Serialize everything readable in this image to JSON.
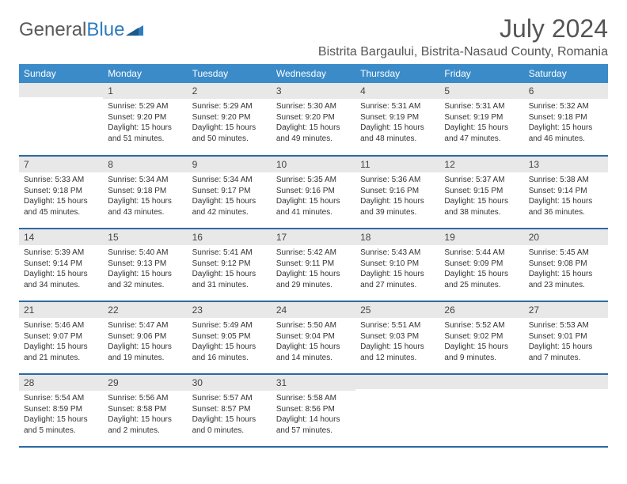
{
  "logo": {
    "text1": "General",
    "text2": "Blue"
  },
  "header": {
    "month_title": "July 2024",
    "location": "Bistrita Bargaului, Bistrita-Nasaud County, Romania"
  },
  "colors": {
    "header_bg": "#3b8bc9",
    "header_text": "#ffffff",
    "daynum_bg": "#e8e8e8",
    "row_border": "#2d6aa3",
    "logo_gray": "#5a5a5a",
    "logo_blue": "#2d7cc0"
  },
  "weekdays": [
    "Sunday",
    "Monday",
    "Tuesday",
    "Wednesday",
    "Thursday",
    "Friday",
    "Saturday"
  ],
  "weeks": [
    [
      {
        "blank": true
      },
      {
        "n": "1",
        "sr": "5:29 AM",
        "ss": "9:20 PM",
        "dl": "15 hours and 51 minutes."
      },
      {
        "n": "2",
        "sr": "5:29 AM",
        "ss": "9:20 PM",
        "dl": "15 hours and 50 minutes."
      },
      {
        "n": "3",
        "sr": "5:30 AM",
        "ss": "9:20 PM",
        "dl": "15 hours and 49 minutes."
      },
      {
        "n": "4",
        "sr": "5:31 AM",
        "ss": "9:19 PM",
        "dl": "15 hours and 48 minutes."
      },
      {
        "n": "5",
        "sr": "5:31 AM",
        "ss": "9:19 PM",
        "dl": "15 hours and 47 minutes."
      },
      {
        "n": "6",
        "sr": "5:32 AM",
        "ss": "9:18 PM",
        "dl": "15 hours and 46 minutes."
      }
    ],
    [
      {
        "n": "7",
        "sr": "5:33 AM",
        "ss": "9:18 PM",
        "dl": "15 hours and 45 minutes."
      },
      {
        "n": "8",
        "sr": "5:34 AM",
        "ss": "9:18 PM",
        "dl": "15 hours and 43 minutes."
      },
      {
        "n": "9",
        "sr": "5:34 AM",
        "ss": "9:17 PM",
        "dl": "15 hours and 42 minutes."
      },
      {
        "n": "10",
        "sr": "5:35 AM",
        "ss": "9:16 PM",
        "dl": "15 hours and 41 minutes."
      },
      {
        "n": "11",
        "sr": "5:36 AM",
        "ss": "9:16 PM",
        "dl": "15 hours and 39 minutes."
      },
      {
        "n": "12",
        "sr": "5:37 AM",
        "ss": "9:15 PM",
        "dl": "15 hours and 38 minutes."
      },
      {
        "n": "13",
        "sr": "5:38 AM",
        "ss": "9:14 PM",
        "dl": "15 hours and 36 minutes."
      }
    ],
    [
      {
        "n": "14",
        "sr": "5:39 AM",
        "ss": "9:14 PM",
        "dl": "15 hours and 34 minutes."
      },
      {
        "n": "15",
        "sr": "5:40 AM",
        "ss": "9:13 PM",
        "dl": "15 hours and 32 minutes."
      },
      {
        "n": "16",
        "sr": "5:41 AM",
        "ss": "9:12 PM",
        "dl": "15 hours and 31 minutes."
      },
      {
        "n": "17",
        "sr": "5:42 AM",
        "ss": "9:11 PM",
        "dl": "15 hours and 29 minutes."
      },
      {
        "n": "18",
        "sr": "5:43 AM",
        "ss": "9:10 PM",
        "dl": "15 hours and 27 minutes."
      },
      {
        "n": "19",
        "sr": "5:44 AM",
        "ss": "9:09 PM",
        "dl": "15 hours and 25 minutes."
      },
      {
        "n": "20",
        "sr": "5:45 AM",
        "ss": "9:08 PM",
        "dl": "15 hours and 23 minutes."
      }
    ],
    [
      {
        "n": "21",
        "sr": "5:46 AM",
        "ss": "9:07 PM",
        "dl": "15 hours and 21 minutes."
      },
      {
        "n": "22",
        "sr": "5:47 AM",
        "ss": "9:06 PM",
        "dl": "15 hours and 19 minutes."
      },
      {
        "n": "23",
        "sr": "5:49 AM",
        "ss": "9:05 PM",
        "dl": "15 hours and 16 minutes."
      },
      {
        "n": "24",
        "sr": "5:50 AM",
        "ss": "9:04 PM",
        "dl": "15 hours and 14 minutes."
      },
      {
        "n": "25",
        "sr": "5:51 AM",
        "ss": "9:03 PM",
        "dl": "15 hours and 12 minutes."
      },
      {
        "n": "26",
        "sr": "5:52 AM",
        "ss": "9:02 PM",
        "dl": "15 hours and 9 minutes."
      },
      {
        "n": "27",
        "sr": "5:53 AM",
        "ss": "9:01 PM",
        "dl": "15 hours and 7 minutes."
      }
    ],
    [
      {
        "n": "28",
        "sr": "5:54 AM",
        "ss": "8:59 PM",
        "dl": "15 hours and 5 minutes."
      },
      {
        "n": "29",
        "sr": "5:56 AM",
        "ss": "8:58 PM",
        "dl": "15 hours and 2 minutes."
      },
      {
        "n": "30",
        "sr": "5:57 AM",
        "ss": "8:57 PM",
        "dl": "15 hours and 0 minutes."
      },
      {
        "n": "31",
        "sr": "5:58 AM",
        "ss": "8:56 PM",
        "dl": "14 hours and 57 minutes."
      },
      {
        "blank": true
      },
      {
        "blank": true
      },
      {
        "blank": true
      }
    ]
  ],
  "labels": {
    "sunrise": "Sunrise:",
    "sunset": "Sunset:",
    "daylight": "Daylight:"
  }
}
